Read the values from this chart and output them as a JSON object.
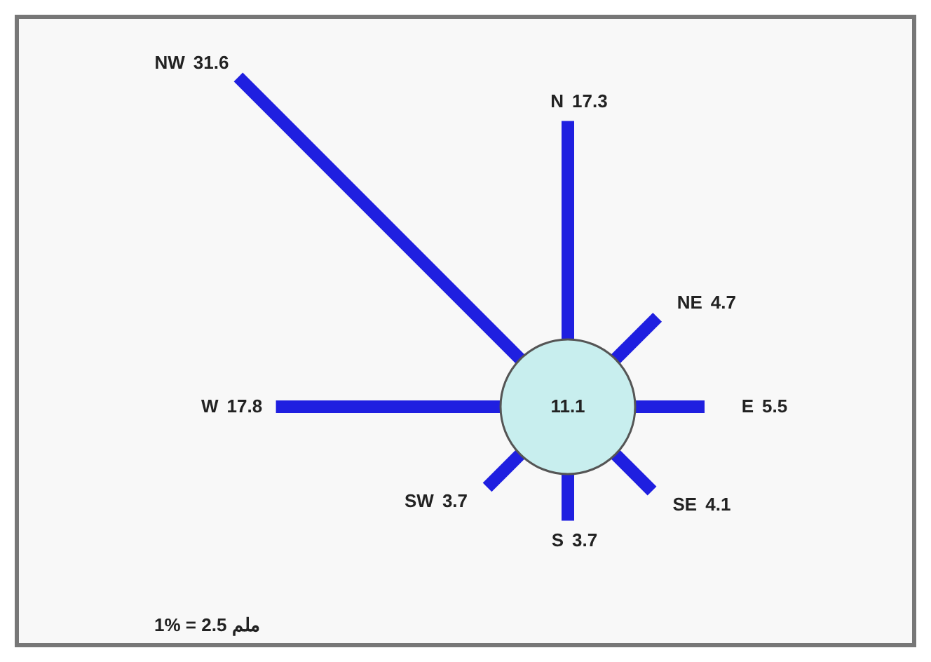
{
  "chart_data": {
    "type": "other",
    "categories": [
      "N",
      "NE",
      "E",
      "SE",
      "S",
      "SW",
      "W",
      "NW"
    ],
    "values": [
      17.3,
      4.7,
      5.5,
      4.1,
      3.7,
      3.7,
      17.8,
      31.6
    ],
    "color": "#1f1fe0",
    "data_labels": true,
    "annotations": [
      "11.1",
      "1% = 2.5 ملم"
    ]
  }
}
